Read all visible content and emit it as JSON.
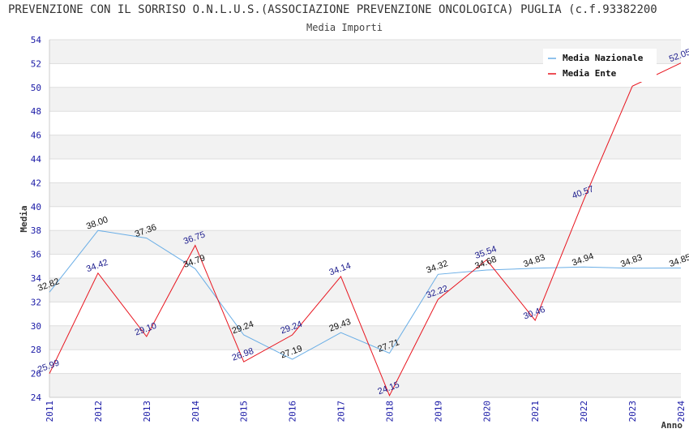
{
  "chart_data": {
    "type": "line",
    "title": "PREVENZIONE CON IL SORRISO O.N.L.U.S.(ASSOCIAZIONE PREVENZIONE ONCOLOGICA) PUGLIA (c.f.93382200",
    "subtitle": "Media Importi",
    "xlabel": "Anno",
    "ylabel": "Media",
    "ylim": [
      24,
      54
    ],
    "grid": true,
    "legend_position": "top-right",
    "x": [
      "2011",
      "2012",
      "2013",
      "2014",
      "2015",
      "2016",
      "2017",
      "2018",
      "2019",
      "2020",
      "2021",
      "2022",
      "2023",
      "2024"
    ],
    "y_ticks": [
      "24",
      "26",
      "28",
      "30",
      "32",
      "34",
      "36",
      "38",
      "40",
      "42",
      "44",
      "46",
      "48",
      "50",
      "52",
      "54"
    ],
    "series": [
      {
        "name": "Media Nazionale",
        "color": "#6aaee6",
        "values": [
          32.82,
          38.0,
          37.36,
          34.79,
          29.24,
          27.19,
          29.43,
          27.71,
          34.32,
          34.68,
          34.83,
          34.94,
          34.83,
          34.85
        ],
        "labels": [
          "32.82",
          "38.00",
          "37.36",
          "34.79",
          "29.24",
          "27.19",
          "29.43",
          "27.71",
          "34.32",
          "34.68",
          "34.83",
          "34.94",
          "34.83",
          "34.85"
        ]
      },
      {
        "name": "Media Ente",
        "color": "#e8141e",
        "values": [
          25.99,
          34.42,
          29.1,
          36.75,
          26.98,
          29.24,
          34.14,
          24.15,
          32.22,
          35.54,
          30.46,
          40.57,
          50.1,
          52.05
        ],
        "labels": [
          "25.99",
          "34.42",
          "29.10",
          "36.75",
          "26.98",
          "29.24",
          "34.14",
          "24.15",
          "32.22",
          "35.54",
          "30.46",
          "40.57",
          "",
          "52.05"
        ]
      }
    ]
  }
}
